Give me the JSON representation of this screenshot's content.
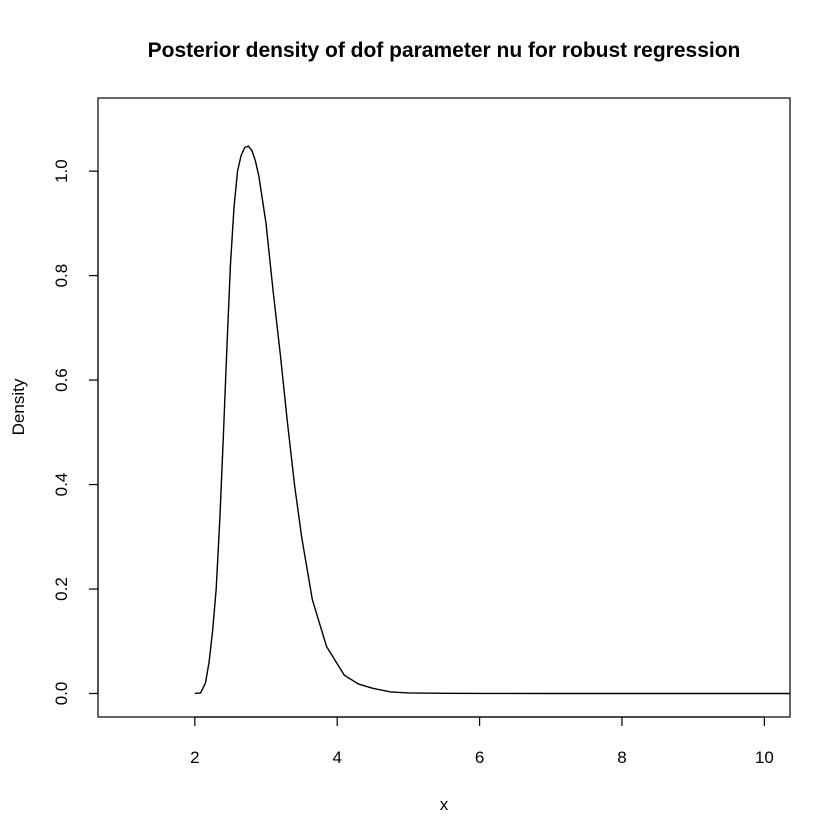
{
  "chart_data": {
    "type": "line",
    "title": "Posterior density of dof parameter nu for robust regression",
    "xlabel": "x",
    "ylabel": "Density",
    "xlim": [
      0.64,
      10.36
    ],
    "ylim": [
      -0.045,
      1.14
    ],
    "x_ticks": [
      2,
      4,
      6,
      8,
      10
    ],
    "x_tick_labels": [
      "2",
      "4",
      "6",
      "8",
      "10"
    ],
    "y_ticks": [
      0.0,
      0.2,
      0.4,
      0.6,
      0.8,
      1.0
    ],
    "y_tick_labels": [
      "0.0",
      "0.2",
      "0.4",
      "0.6",
      "0.8",
      "1.0"
    ],
    "grid": false,
    "series": [
      {
        "x": [
          2.0,
          2.08,
          2.15,
          2.2,
          2.25,
          2.3,
          2.35,
          2.4,
          2.45,
          2.5,
          2.55,
          2.6,
          2.65,
          2.7,
          2.75,
          2.8,
          2.85,
          2.9,
          3.0,
          3.1,
          3.2,
          3.3,
          3.4,
          3.5,
          3.65,
          3.85,
          4.1,
          4.3,
          4.5,
          4.75,
          5.0,
          5.5,
          6.0,
          7.0,
          8.0,
          9.0,
          10.36
        ],
        "y": [
          0.0,
          0.001,
          0.02,
          0.06,
          0.12,
          0.2,
          0.33,
          0.49,
          0.66,
          0.82,
          0.93,
          1.0,
          1.03,
          1.045,
          1.048,
          1.04,
          1.02,
          0.99,
          0.9,
          0.77,
          0.65,
          0.52,
          0.4,
          0.3,
          0.18,
          0.09,
          0.035,
          0.018,
          0.01,
          0.003,
          0.001,
          0.0003,
          0.0001,
          0.0,
          0.0,
          0.0,
          0.0
        ]
      }
    ]
  }
}
